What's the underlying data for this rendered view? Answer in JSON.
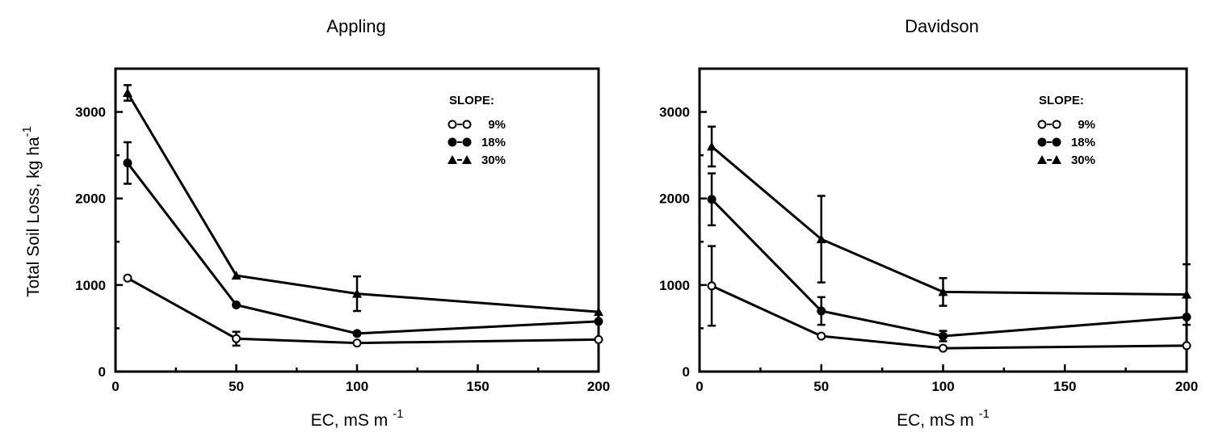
{
  "figure": {
    "ylabel": "Total Soil Loss, kg ha",
    "ylabel_sup": "-1"
  },
  "chart_data": [
    {
      "type": "line",
      "title": "Appling",
      "xlabel": "EC, mS m",
      "xlabel_sup": "-1",
      "ylabel": "Total Soil Loss, kg ha^-1",
      "xlim": [
        0,
        200
      ],
      "ylim": [
        0,
        3500
      ],
      "xticks": [
        0,
        50,
        100,
        150,
        200
      ],
      "yticks": [
        0,
        1000,
        2000,
        3000
      ],
      "x": [
        5,
        50,
        100,
        200
      ],
      "legend_title": "SLOPE:",
      "legend_position": "top-right",
      "series": [
        {
          "name": "9%",
          "marker_key": "o-o",
          "marker": "open-circle",
          "values": [
            1080,
            380,
            330,
            370
          ],
          "errors": [
            0,
            80,
            0,
            0
          ]
        },
        {
          "name": "18%",
          "marker_key": "●-●",
          "marker": "filled-circle",
          "values": [
            2410,
            770,
            440,
            580
          ],
          "errors": [
            240,
            0,
            0,
            0
          ]
        },
        {
          "name": "30%",
          "marker_key": "▲-▲",
          "marker": "filled-triangle",
          "values": [
            3220,
            1110,
            900,
            690
          ],
          "errors": [
            90,
            0,
            200,
            0
          ]
        }
      ]
    },
    {
      "type": "line",
      "title": "Davidson",
      "xlabel": "EC, mS m",
      "xlabel_sup": "-1",
      "ylabel": "",
      "xlim": [
        0,
        200
      ],
      "ylim": [
        0,
        3500
      ],
      "xticks": [
        0,
        50,
        100,
        150,
        200
      ],
      "yticks": [
        0,
        1000,
        2000,
        3000
      ],
      "x": [
        5,
        50,
        100,
        200
      ],
      "legend_title": "SLOPE:",
      "legend_position": "top-right",
      "series": [
        {
          "name": "9%",
          "marker_key": "o-o",
          "marker": "open-circle",
          "values": [
            990,
            410,
            270,
            300
          ],
          "errors": [
            460,
            0,
            0,
            0
          ]
        },
        {
          "name": "18%",
          "marker_key": "●-●",
          "marker": "filled-circle",
          "values": [
            1990,
            700,
            410,
            630
          ],
          "errors": [
            300,
            160,
            60,
            0
          ]
        },
        {
          "name": "30%",
          "marker_key": "▲-▲",
          "marker": "filled-triangle",
          "values": [
            2600,
            1530,
            920,
            890
          ],
          "errors": [
            230,
            500,
            160,
            350
          ]
        }
      ]
    }
  ]
}
